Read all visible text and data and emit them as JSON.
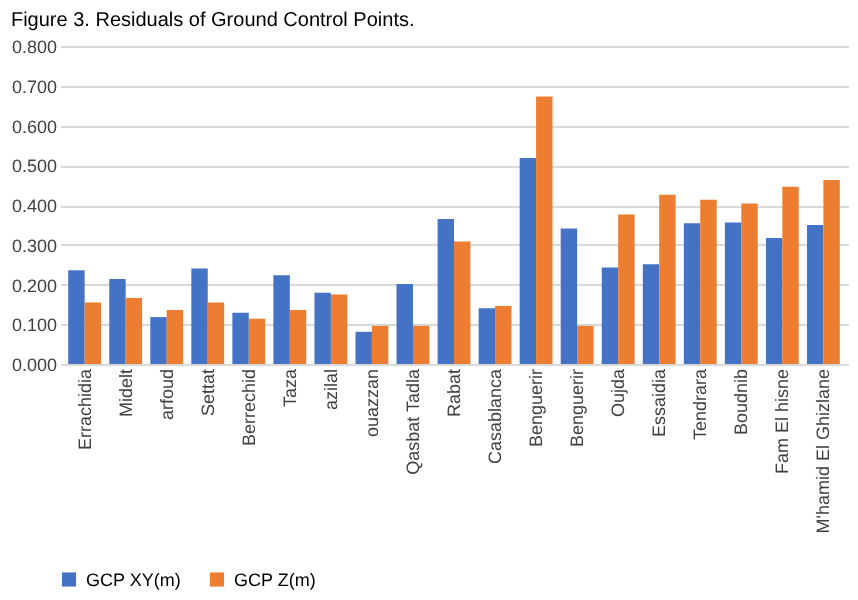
{
  "chart_data": {
    "type": "bar",
    "title": "Figure 3. Residuals of Ground Control Points.",
    "categories": [
      "Errachidia",
      "Midelt",
      "arfoud",
      "Settat",
      "Berrechid",
      "Taza",
      "azilal",
      "ouazzan",
      "Qasbat Tadla",
      "Rabat",
      "Casablanca",
      "Benguerir",
      "Benguerir",
      "Oujda",
      "Essaidia",
      "Tendrara",
      "Boudnib",
      "Fam El hisne",
      "M'hamid El Ghizlane"
    ],
    "series": [
      {
        "name": "GCP  XY(m)",
        "color": "#4472c4",
        "values": [
          0.236,
          0.214,
          0.118,
          0.24,
          0.129,
          0.223,
          0.179,
          0.081,
          0.201,
          0.365,
          0.14,
          0.518,
          0.341,
          0.243,
          0.251,
          0.354,
          0.356,
          0.317,
          0.35
        ]
      },
      {
        "name": "GCP Z(m)",
        "color": "#ed7d31",
        "values": [
          0.155,
          0.166,
          0.136,
          0.155,
          0.114,
          0.136,
          0.175,
          0.096,
          0.096,
          0.308,
          0.146,
          0.673,
          0.096,
          0.376,
          0.426,
          0.413,
          0.404,
          0.446,
          0.463
        ]
      }
    ],
    "ylim": [
      0,
      0.8
    ],
    "yticks": [
      {
        "value": 0,
        "label": "0.000"
      },
      {
        "value": 0.1,
        "label": "0.100"
      },
      {
        "value": 0.2,
        "label": "0.200"
      },
      {
        "value": 0.3,
        "label": "0.300"
      },
      {
        "value": 0.4,
        "label": "0.400"
      },
      {
        "value": 0.5,
        "label": "0.500"
      },
      {
        "value": 0.6,
        "label": "0.600"
      },
      {
        "value": 0.7,
        "label": "0.700"
      },
      {
        "value": 0.8,
        "label": "0.800"
      }
    ],
    "grid": "y",
    "legend": "bottom"
  }
}
